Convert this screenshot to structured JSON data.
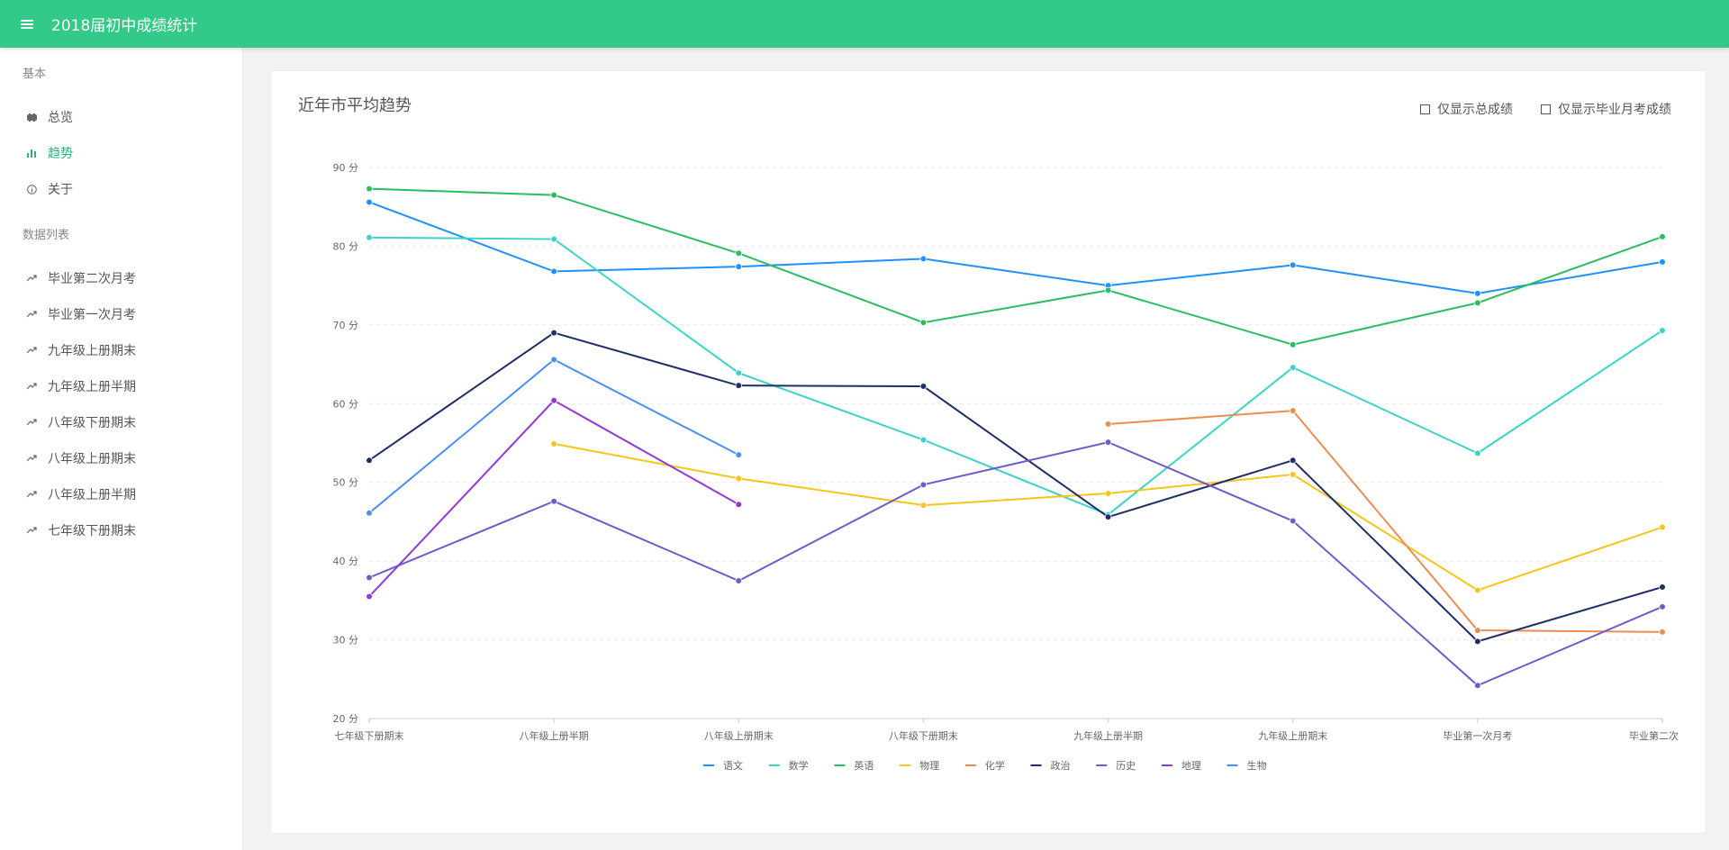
{
  "header": {
    "title": "2018届初中成绩统计"
  },
  "sidebar": {
    "section_basic": "基本",
    "basic_items": [
      {
        "label": "总览",
        "icon": "dashboard-icon"
      },
      {
        "label": "趋势",
        "icon": "bar-chart-icon",
        "active": true
      },
      {
        "label": "关于",
        "icon": "info-icon"
      }
    ],
    "section_data": "数据列表",
    "data_items": [
      {
        "label": "毕业第二次月考",
        "icon": "trend-icon"
      },
      {
        "label": "毕业第一次月考",
        "icon": "trend-icon"
      },
      {
        "label": "九年级上册期末",
        "icon": "trend-icon"
      },
      {
        "label": "九年级上册半期",
        "icon": "trend-icon"
      },
      {
        "label": "八年级下册期末",
        "icon": "trend-icon"
      },
      {
        "label": "八年级上册期末",
        "icon": "trend-icon"
      },
      {
        "label": "八年级上册半期",
        "icon": "trend-icon"
      },
      {
        "label": "七年级下册期末",
        "icon": "trend-icon"
      }
    ]
  },
  "main": {
    "title": "近年市平均趋势",
    "check_total": "仅显示总成绩",
    "check_monthly": "仅显示毕业月考成绩"
  },
  "chart_data": {
    "type": "line",
    "x": [
      "七年级下册期末",
      "八年级上册半期",
      "八年级上册期末",
      "八年级下册期末",
      "九年级上册半期",
      "九年级上册期末",
      "毕业第一次月考",
      "毕业第二次月考"
    ],
    "x_tick_display": [
      "七年级下册期末",
      "八年级上册半期",
      "八年级上册期末",
      "八年级下册期末",
      "九年级上册半期",
      "九年级上册期末",
      "毕业第一次月考",
      "毕业第二次"
    ],
    "y_ticks": [
      "20 分",
      "30 分",
      "40 分",
      "50 分",
      "60 分",
      "70 分",
      "80 分",
      "90 分"
    ],
    "ylim": [
      20,
      90
    ],
    "grid": true,
    "legend_position": "bottom-center",
    "series": [
      {
        "name": "语文",
        "color": "#1e90ff",
        "values": [
          85.6,
          76.8,
          77.4,
          78.4,
          75.0,
          77.6,
          74.0,
          78.0
        ]
      },
      {
        "name": "数学",
        "color": "#3cd3c6",
        "values": [
          81.1,
          80.9,
          63.9,
          55.4,
          45.9,
          64.6,
          53.7,
          69.3
        ]
      },
      {
        "name": "英语",
        "color": "#2bbd5f",
        "values": [
          87.3,
          86.5,
          79.1,
          70.3,
          74.4,
          67.5,
          72.8,
          81.2
        ]
      },
      {
        "name": "物理",
        "color": "#f5c518",
        "values": [
          null,
          54.9,
          50.5,
          47.1,
          48.6,
          51.0,
          36.3,
          44.3
        ]
      },
      {
        "name": "化学",
        "color": "#eb8c51",
        "values": [
          null,
          null,
          null,
          null,
          57.4,
          59.1,
          31.2,
          31.0
        ]
      },
      {
        "name": "政治",
        "color": "#1f2d69",
        "values": [
          52.8,
          69.0,
          62.3,
          62.2,
          45.6,
          52.8,
          29.8,
          36.7
        ]
      },
      {
        "name": "历史",
        "color": "#7259cc",
        "values": [
          37.9,
          47.6,
          37.5,
          49.7,
          55.1,
          45.1,
          24.2,
          34.2
        ]
      },
      {
        "name": "地理",
        "color": "#8e3ad9",
        "values": [
          35.5,
          60.4,
          47.2,
          null,
          null,
          null,
          null,
          null
        ]
      },
      {
        "name": "生物",
        "color": "#4b8ff0",
        "values": [
          46.1,
          65.6,
          53.5,
          null,
          null,
          null,
          null,
          null
        ]
      }
    ]
  }
}
